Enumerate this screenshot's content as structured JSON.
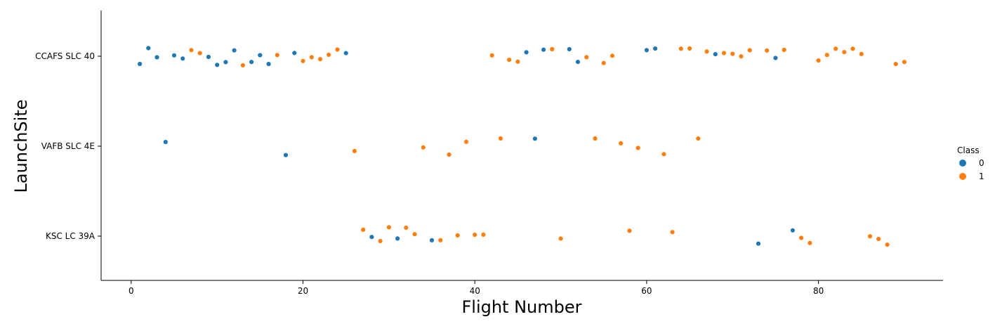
{
  "chart_data": {
    "type": "scatter",
    "xlabel": "Flight Number",
    "ylabel": "LaunchSite",
    "xlim": [
      -3.5,
      94.5
    ],
    "x_ticks": [
      0,
      20,
      40,
      60,
      80
    ],
    "categories": [
      "CCAFS SLC 40",
      "VAFB SLC 4E",
      "KSC LC 39A"
    ],
    "grid": false,
    "legend": {
      "title": "Class",
      "placement": "right",
      "entries": [
        {
          "label": "0",
          "color": "#1f77b4"
        },
        {
          "label": "1",
          "color": "#ff7f0e"
        }
      ]
    },
    "series": [
      {
        "class": "0",
        "color": "#1f77b4",
        "points": [
          {
            "x": 1,
            "site": "CCAFS SLC 40"
          },
          {
            "x": 2,
            "site": "CCAFS SLC 40"
          },
          {
            "x": 3,
            "site": "CCAFS SLC 40"
          },
          {
            "x": 5,
            "site": "CCAFS SLC 40"
          },
          {
            "x": 6,
            "site": "CCAFS SLC 40"
          },
          {
            "x": 9,
            "site": "CCAFS SLC 40"
          },
          {
            "x": 10,
            "site": "CCAFS SLC 40"
          },
          {
            "x": 11,
            "site": "CCAFS SLC 40"
          },
          {
            "x": 12,
            "site": "CCAFS SLC 40"
          },
          {
            "x": 14,
            "site": "CCAFS SLC 40"
          },
          {
            "x": 15,
            "site": "CCAFS SLC 40"
          },
          {
            "x": 16,
            "site": "CCAFS SLC 40"
          },
          {
            "x": 19,
            "site": "CCAFS SLC 40"
          },
          {
            "x": 25,
            "site": "CCAFS SLC 40"
          },
          {
            "x": 46,
            "site": "CCAFS SLC 40"
          },
          {
            "x": 48,
            "site": "CCAFS SLC 40"
          },
          {
            "x": 51,
            "site": "CCAFS SLC 40"
          },
          {
            "x": 52,
            "site": "CCAFS SLC 40"
          },
          {
            "x": 60,
            "site": "CCAFS SLC 40"
          },
          {
            "x": 61,
            "site": "CCAFS SLC 40"
          },
          {
            "x": 68,
            "site": "CCAFS SLC 40"
          },
          {
            "x": 75,
            "site": "CCAFS SLC 40"
          },
          {
            "x": 4,
            "site": "VAFB SLC 4E"
          },
          {
            "x": 18,
            "site": "VAFB SLC 4E"
          },
          {
            "x": 47,
            "site": "VAFB SLC 4E"
          },
          {
            "x": 28,
            "site": "KSC LC 39A"
          },
          {
            "x": 31,
            "site": "KSC LC 39A"
          },
          {
            "x": 35,
            "site": "KSC LC 39A"
          },
          {
            "x": 73,
            "site": "KSC LC 39A"
          },
          {
            "x": 77,
            "site": "KSC LC 39A"
          }
        ]
      },
      {
        "class": "1",
        "color": "#ff7f0e",
        "points": [
          {
            "x": 7,
            "site": "CCAFS SLC 40"
          },
          {
            "x": 8,
            "site": "CCAFS SLC 40"
          },
          {
            "x": 13,
            "site": "CCAFS SLC 40"
          },
          {
            "x": 17,
            "site": "CCAFS SLC 40"
          },
          {
            "x": 20,
            "site": "CCAFS SLC 40"
          },
          {
            "x": 21,
            "site": "CCAFS SLC 40"
          },
          {
            "x": 22,
            "site": "CCAFS SLC 40"
          },
          {
            "x": 23,
            "site": "CCAFS SLC 40"
          },
          {
            "x": 24,
            "site": "CCAFS SLC 40"
          },
          {
            "x": 42,
            "site": "CCAFS SLC 40"
          },
          {
            "x": 44,
            "site": "CCAFS SLC 40"
          },
          {
            "x": 45,
            "site": "CCAFS SLC 40"
          },
          {
            "x": 49,
            "site": "CCAFS SLC 40"
          },
          {
            "x": 53,
            "site": "CCAFS SLC 40"
          },
          {
            "x": 55,
            "site": "CCAFS SLC 40"
          },
          {
            "x": 56,
            "site": "CCAFS SLC 40"
          },
          {
            "x": 64,
            "site": "CCAFS SLC 40"
          },
          {
            "x": 65,
            "site": "CCAFS SLC 40"
          },
          {
            "x": 67,
            "site": "CCAFS SLC 40"
          },
          {
            "x": 69,
            "site": "CCAFS SLC 40"
          },
          {
            "x": 70,
            "site": "CCAFS SLC 40"
          },
          {
            "x": 71,
            "site": "CCAFS SLC 40"
          },
          {
            "x": 72,
            "site": "CCAFS SLC 40"
          },
          {
            "x": 74,
            "site": "CCAFS SLC 40"
          },
          {
            "x": 76,
            "site": "CCAFS SLC 40"
          },
          {
            "x": 80,
            "site": "CCAFS SLC 40"
          },
          {
            "x": 81,
            "site": "CCAFS SLC 40"
          },
          {
            "x": 82,
            "site": "CCAFS SLC 40"
          },
          {
            "x": 83,
            "site": "CCAFS SLC 40"
          },
          {
            "x": 84,
            "site": "CCAFS SLC 40"
          },
          {
            "x": 85,
            "site": "CCAFS SLC 40"
          },
          {
            "x": 89,
            "site": "CCAFS SLC 40"
          },
          {
            "x": 90,
            "site": "CCAFS SLC 40"
          },
          {
            "x": 26,
            "site": "VAFB SLC 4E"
          },
          {
            "x": 34,
            "site": "VAFB SLC 4E"
          },
          {
            "x": 37,
            "site": "VAFB SLC 4E"
          },
          {
            "x": 39,
            "site": "VAFB SLC 4E"
          },
          {
            "x": 43,
            "site": "VAFB SLC 4E"
          },
          {
            "x": 54,
            "site": "VAFB SLC 4E"
          },
          {
            "x": 57,
            "site": "VAFB SLC 4E"
          },
          {
            "x": 59,
            "site": "VAFB SLC 4E"
          },
          {
            "x": 62,
            "site": "VAFB SLC 4E"
          },
          {
            "x": 66,
            "site": "VAFB SLC 4E"
          },
          {
            "x": 27,
            "site": "KSC LC 39A"
          },
          {
            "x": 29,
            "site": "KSC LC 39A"
          },
          {
            "x": 30,
            "site": "KSC LC 39A"
          },
          {
            "x": 32,
            "site": "KSC LC 39A"
          },
          {
            "x": 33,
            "site": "KSC LC 39A"
          },
          {
            "x": 36,
            "site": "KSC LC 39A"
          },
          {
            "x": 38,
            "site": "KSC LC 39A"
          },
          {
            "x": 40,
            "site": "KSC LC 39A"
          },
          {
            "x": 41,
            "site": "KSC LC 39A"
          },
          {
            "x": 50,
            "site": "KSC LC 39A"
          },
          {
            "x": 58,
            "site": "KSC LC 39A"
          },
          {
            "x": 63,
            "site": "KSC LC 39A"
          },
          {
            "x": 78,
            "site": "KSC LC 39A"
          },
          {
            "x": 79,
            "site": "KSC LC 39A"
          },
          {
            "x": 86,
            "site": "KSC LC 39A"
          },
          {
            "x": 87,
            "site": "KSC LC 39A"
          },
          {
            "x": 88,
            "site": "KSC LC 39A"
          }
        ]
      }
    ]
  }
}
